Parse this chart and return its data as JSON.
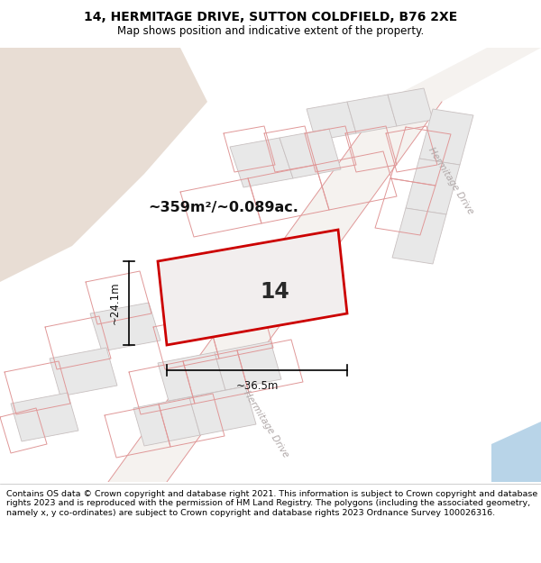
{
  "title": "14, HERMITAGE DRIVE, SUTTON COLDFIELD, B76 2XE",
  "subtitle": "Map shows position and indicative extent of the property.",
  "footer": "Contains OS data © Crown copyright and database right 2021. This information is subject to Crown copyright and database rights 2023 and is reproduced with the permission of HM Land Registry. The polygons (including the associated geometry, namely x, y co-ordinates) are subject to Crown copyright and database rights 2023 Ordnance Survey 100026316.",
  "area_text": "~359m²/~0.089ac.",
  "label_14": "14",
  "dim_width": "~36.5m",
  "dim_height": "~24.1m",
  "map_bg": "#f9f6f3",
  "land_bg": "#e8ddd4",
  "plot_fill": "#f2eeee",
  "plot_edge": "#cc0000",
  "bnd_color": "#e09898",
  "block_fill": "#e8e8e8",
  "block_edge": "#c8c0c0",
  "water_fill": "#b8d4e8",
  "title_fontsize": 10,
  "subtitle_fontsize": 8.5,
  "footer_fontsize": 6.8,
  "road_label_color": "#b0a8a8",
  "dim_color": "#111111"
}
